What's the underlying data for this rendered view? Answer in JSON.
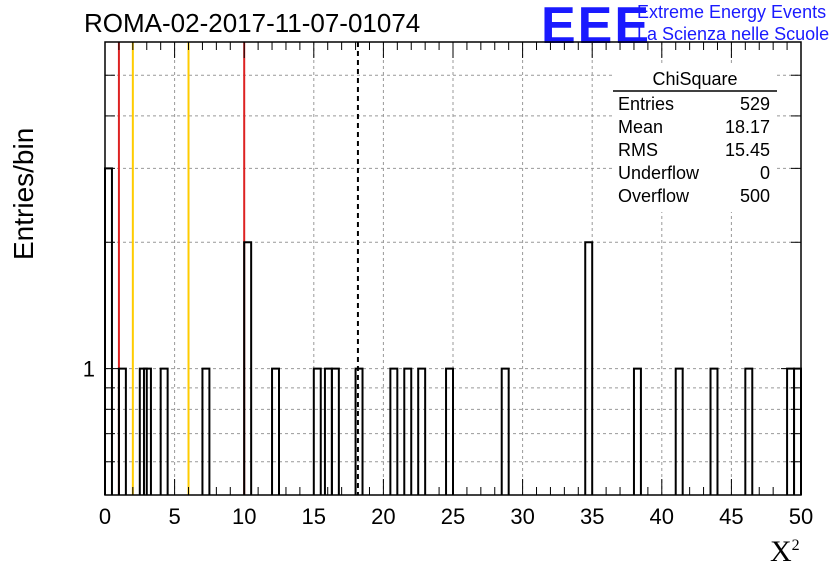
{
  "title": "ROMA-02-2017-11-07-01074",
  "logo": {
    "text": "EEE",
    "line1": "Extreme Energy Events",
    "line2": "La Scienza nelle Scuole",
    "color": "#1a1aff"
  },
  "chart_data": {
    "type": "bar",
    "style": "step-histogram",
    "xlabel": "X",
    "xlabel_sup": "2",
    "ylabel": "Entries/bin",
    "xlim": [
      0,
      50
    ],
    "y_scale": "log",
    "ylim": [
      0.5,
      6
    ],
    "grid": true,
    "x_ticks": [
      "0",
      "5",
      "10",
      "15",
      "20",
      "25",
      "30",
      "35",
      "40",
      "45",
      "50"
    ],
    "x_tick_values": [
      0,
      5,
      10,
      15,
      20,
      25,
      30,
      35,
      40,
      45,
      50
    ],
    "y_ticks": [
      "1"
    ],
    "y_tick_values": [
      1
    ],
    "bin_width": 0.5,
    "bins": [
      {
        "x": 0.0,
        "y": 3
      },
      {
        "x": 1.0,
        "y": 1
      },
      {
        "x": 2.5,
        "y": 1
      },
      {
        "x": 2.8,
        "y": 1
      },
      {
        "x": 4.0,
        "y": 1
      },
      {
        "x": 7.0,
        "y": 1
      },
      {
        "x": 10.0,
        "y": 2
      },
      {
        "x": 12.0,
        "y": 1
      },
      {
        "x": 15.0,
        "y": 1
      },
      {
        "x": 15.8,
        "y": 1
      },
      {
        "x": 16.3,
        "y": 1
      },
      {
        "x": 18.0,
        "y": 1
      },
      {
        "x": 20.5,
        "y": 1
      },
      {
        "x": 21.5,
        "y": 1
      },
      {
        "x": 22.5,
        "y": 1
      },
      {
        "x": 24.5,
        "y": 1
      },
      {
        "x": 28.5,
        "y": 1
      },
      {
        "x": 34.5,
        "y": 2
      },
      {
        "x": 38.0,
        "y": 1
      },
      {
        "x": 41.0,
        "y": 1
      },
      {
        "x": 43.5,
        "y": 1
      },
      {
        "x": 46.0,
        "y": 1
      },
      {
        "x": 49.0,
        "y": 1
      },
      {
        "x": 49.5,
        "y": 1
      }
    ],
    "reference_lines": [
      {
        "x": 1.0,
        "color": "#dd2222"
      },
      {
        "x": 2.0,
        "color": "#ffcc00"
      },
      {
        "x": 6.0,
        "color": "#ffcc00"
      },
      {
        "x": 10.0,
        "color": "#dd2222"
      }
    ],
    "mean_line": {
      "x": 18.17,
      "style": "dashed",
      "color": "#000000"
    },
    "stats_box": {
      "title": "ChiSquare",
      "rows": [
        {
          "label": "Entries",
          "value": "529"
        },
        {
          "label": "Mean",
          "value": "18.17"
        },
        {
          "label": "RMS",
          "value": "15.45"
        },
        {
          "label": "Underflow",
          "value": "0"
        },
        {
          "label": "Overflow",
          "value": "500"
        }
      ]
    }
  }
}
